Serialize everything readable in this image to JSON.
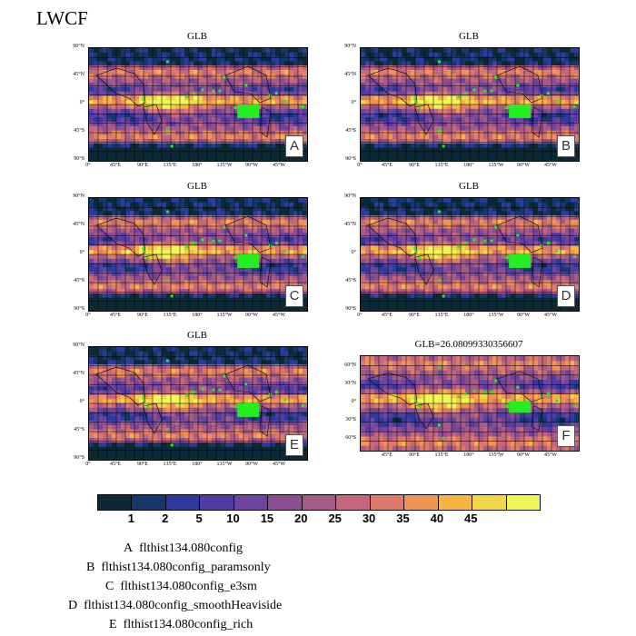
{
  "figure": {
    "title": "LWCF"
  },
  "chart_data": {
    "type": "heatmap",
    "variable": "LWCF",
    "colorbar": {
      "levels": [
        1,
        2,
        5,
        10,
        15,
        20,
        25,
        30,
        35,
        40,
        45
      ],
      "colors": [
        "#0c2a36",
        "#15386c",
        "#2f3aa0",
        "#523da6",
        "#6d449f",
        "#8b4e93",
        "#a65a87",
        "#c2677c",
        "#dd7a6a",
        "#f09353",
        "#f8b544",
        "#f2d748",
        "#eef758"
      ]
    },
    "panels": [
      {
        "id": "A",
        "title": "GLB",
        "projection": "global-full",
        "lat_ticks": [
          "90°N",
          "45°N",
          "0°",
          "45°S",
          "90°S"
        ],
        "lon_ticks": [
          "0°",
          "45°E",
          "90°E",
          "135°E",
          "180°",
          "135°W",
          "90°W",
          "45°W"
        ]
      },
      {
        "id": "B",
        "title": "GLB",
        "projection": "global-full",
        "lat_ticks": [
          "90°N",
          "45°N",
          "0°",
          "45°S",
          "90°S"
        ],
        "lon_ticks": [
          "0°",
          "45°E",
          "90°E",
          "135°E",
          "180°",
          "135°W",
          "90°W",
          "45°W"
        ]
      },
      {
        "id": "C",
        "title": "GLB",
        "projection": "global-full",
        "lat_ticks": [
          "90°N",
          "45°N",
          "0°",
          "45°S",
          "90°S"
        ],
        "lon_ticks": [
          "0°",
          "45°E",
          "90°E",
          "135°E",
          "180°",
          "135°W",
          "90°W",
          "45°W"
        ]
      },
      {
        "id": "D",
        "title": "GLB",
        "projection": "global-full",
        "lat_ticks": [
          "90°N",
          "45°N",
          "0°",
          "45°S",
          "90°S"
        ],
        "lon_ticks": [
          "0°",
          "45°E",
          "90°E",
          "135°E",
          "180°",
          "135°W",
          "90°W",
          "45°W"
        ]
      },
      {
        "id": "E",
        "title": "GLB",
        "projection": "global-full",
        "lat_ticks": [
          "90°N",
          "45°N",
          "0°",
          "45°S",
          "90°S"
        ],
        "lon_ticks": [
          "0°",
          "45°E",
          "90°E",
          "135°E",
          "180°",
          "135°W",
          "90°W",
          "45°W"
        ]
      },
      {
        "id": "F",
        "title": "GLB=26.08099330356607",
        "projection": "global-60",
        "lat_ticks": [
          "60°N",
          "30°N",
          "0°",
          "30°S",
          "60°S"
        ],
        "lon_ticks": [
          "45°E",
          "90°E",
          "135°E",
          "180°",
          "135°W",
          "90°W",
          "45°W"
        ]
      }
    ]
  },
  "legend": [
    {
      "letter": "A",
      "case": "flthist134.080config"
    },
    {
      "letter": "B",
      "case": "flthist134.080config_paramsonly"
    },
    {
      "letter": "C",
      "case": "flthist134.080config_e3sm"
    },
    {
      "letter": "D",
      "case": "flthist134.080config_smoothHeaviside"
    },
    {
      "letter": "E",
      "case": "flthist134.080config_rich"
    }
  ]
}
